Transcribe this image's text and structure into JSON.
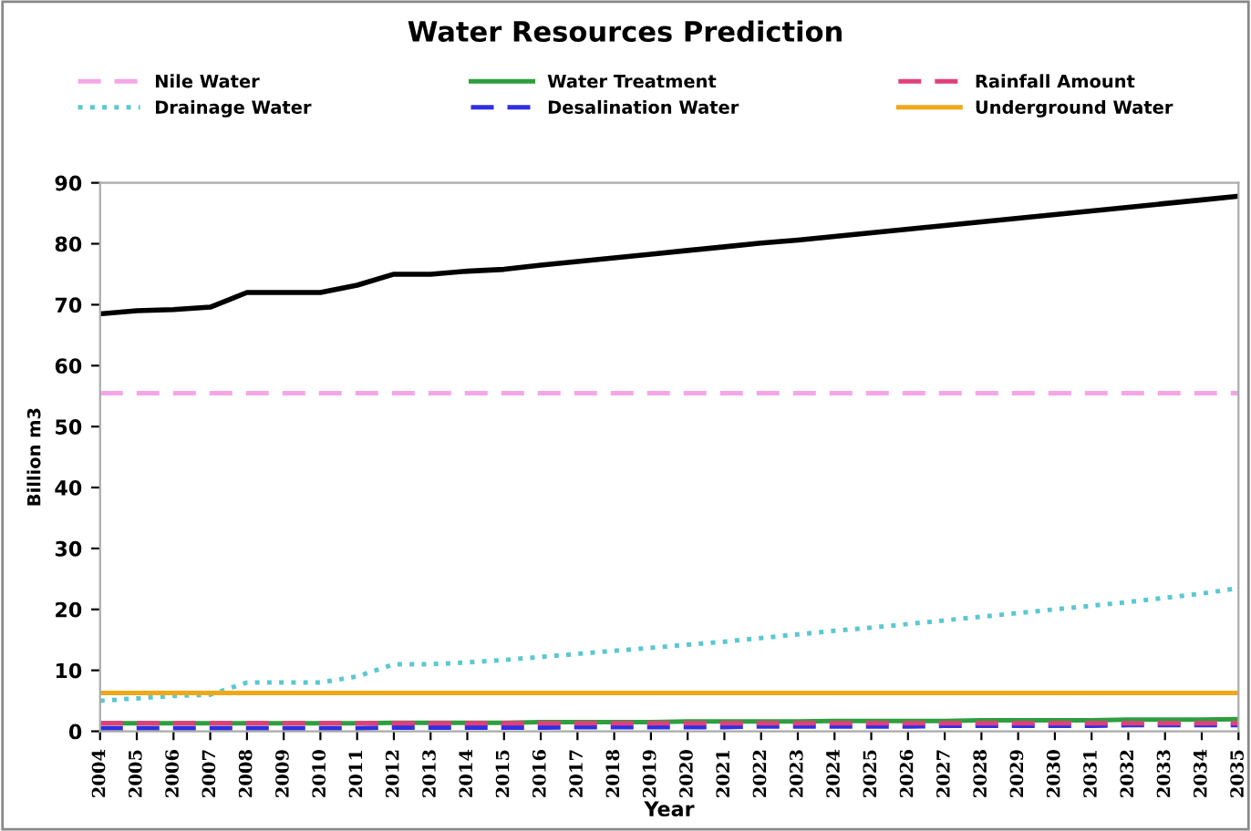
{
  "chart_data": {
    "type": "line",
    "title": "Water Resources Prediction",
    "xlabel": "Year",
    "ylabel": "Billion m3",
    "categories": [
      "2004",
      "2005",
      "2006",
      "2007",
      "2008",
      "2009",
      "2010",
      "2011",
      "2012",
      "2013",
      "2014",
      "2015",
      "2016",
      "2017",
      "2018",
      "2019",
      "2020",
      "2021",
      "2022",
      "2023",
      "2024",
      "2025",
      "2026",
      "2027",
      "2028",
      "2029",
      "2030",
      "2031",
      "2032",
      "2033",
      "2034",
      "2035"
    ],
    "ylim": [
      0,
      90
    ],
    "yticks": [
      0,
      10,
      20,
      30,
      40,
      50,
      60,
      70,
      80,
      90
    ],
    "grid": false,
    "legend": "top",
    "marker": "none",
    "series": [
      {
        "name": "Nile Water",
        "color": "#f4a6e8",
        "line_style": "dashed",
        "values": [
          55.5,
          55.5,
          55.5,
          55.5,
          55.5,
          55.5,
          55.5,
          55.5,
          55.5,
          55.5,
          55.5,
          55.5,
          55.5,
          55.5,
          55.5,
          55.5,
          55.5,
          55.5,
          55.5,
          55.5,
          55.5,
          55.5,
          55.5,
          55.5,
          55.5,
          55.5,
          55.5,
          55.5,
          55.5,
          55.5,
          55.5,
          55.5
        ]
      },
      {
        "name": "Drainage Water",
        "color": "#5bc8d0",
        "line_style": "dotted",
        "values": [
          5,
          5.4,
          5.8,
          6,
          8,
          8,
          8,
          9,
          11,
          11,
          11.3,
          11.7,
          12.2,
          12.7,
          13.2,
          13.7,
          14.2,
          14.7,
          15.3,
          15.9,
          16.5,
          17,
          17.6,
          18.2,
          18.8,
          19.4,
          20,
          20.6,
          21.2,
          21.9,
          22.6,
          23.5
        ]
      },
      {
        "name": "Water Treatment",
        "color": "#2e9e3e",
        "line_style": "solid",
        "values": [
          1.3,
          1.3,
          1.3,
          1.3,
          1.3,
          1.3,
          1.3,
          1.3,
          1.4,
          1.4,
          1.4,
          1.4,
          1.5,
          1.5,
          1.5,
          1.5,
          1.6,
          1.6,
          1.6,
          1.6,
          1.7,
          1.7,
          1.7,
          1.7,
          1.8,
          1.8,
          1.8,
          1.8,
          1.9,
          1.9,
          1.9,
          2
        ]
      },
      {
        "name": "Desalination Water",
        "color": "#3030e0",
        "line_style": "dashed",
        "values": [
          0.5,
          0.5,
          0.5,
          0.5,
          0.5,
          0.5,
          0.5,
          0.5,
          0.6,
          0.6,
          0.6,
          0.6,
          0.6,
          0.7,
          0.7,
          0.7,
          0.7,
          0.7,
          0.8,
          0.8,
          0.8,
          0.8,
          0.8,
          0.9,
          0.9,
          0.9,
          0.9,
          0.9,
          1,
          1,
          1,
          1
        ]
      },
      {
        "name": "Rainfall Amount",
        "color": "#e0407a",
        "line_style": "dashed",
        "values": [
          1.3,
          1.3,
          1.3,
          1.3,
          1.3,
          1.3,
          1.3,
          1.3,
          1.3,
          1.3,
          1.3,
          1.3,
          1.3,
          1.3,
          1.3,
          1.3,
          1.3,
          1.3,
          1.3,
          1.3,
          1.3,
          1.3,
          1.3,
          1.3,
          1.3,
          1.3,
          1.3,
          1.3,
          1.3,
          1.3,
          1.3,
          1.3
        ]
      },
      {
        "name": "Underground Water",
        "color": "#f0a818",
        "line_style": "solid",
        "values": [
          6.3,
          6.3,
          6.3,
          6.3,
          6.3,
          6.3,
          6.3,
          6.3,
          6.3,
          6.3,
          6.3,
          6.3,
          6.3,
          6.3,
          6.3,
          6.3,
          6.3,
          6.3,
          6.3,
          6.3,
          6.3,
          6.3,
          6.3,
          6.3,
          6.3,
          6.3,
          6.3,
          6.3,
          6.3,
          6.3,
          6.3,
          6.3
        ]
      },
      {
        "color": "#000000",
        "line_style": "solid",
        "values": [
          68.5,
          69,
          69.2,
          69.6,
          72,
          72,
          72,
          73.2,
          75,
          75,
          75.5,
          75.8,
          76.5,
          77.1,
          77.7,
          78.3,
          78.9,
          79.5,
          80.1,
          80.6,
          81.2,
          81.8,
          82.4,
          83,
          83.6,
          84.2,
          84.8,
          85.4,
          86,
          86.6,
          87.2,
          87.8
        ]
      }
    ]
  }
}
